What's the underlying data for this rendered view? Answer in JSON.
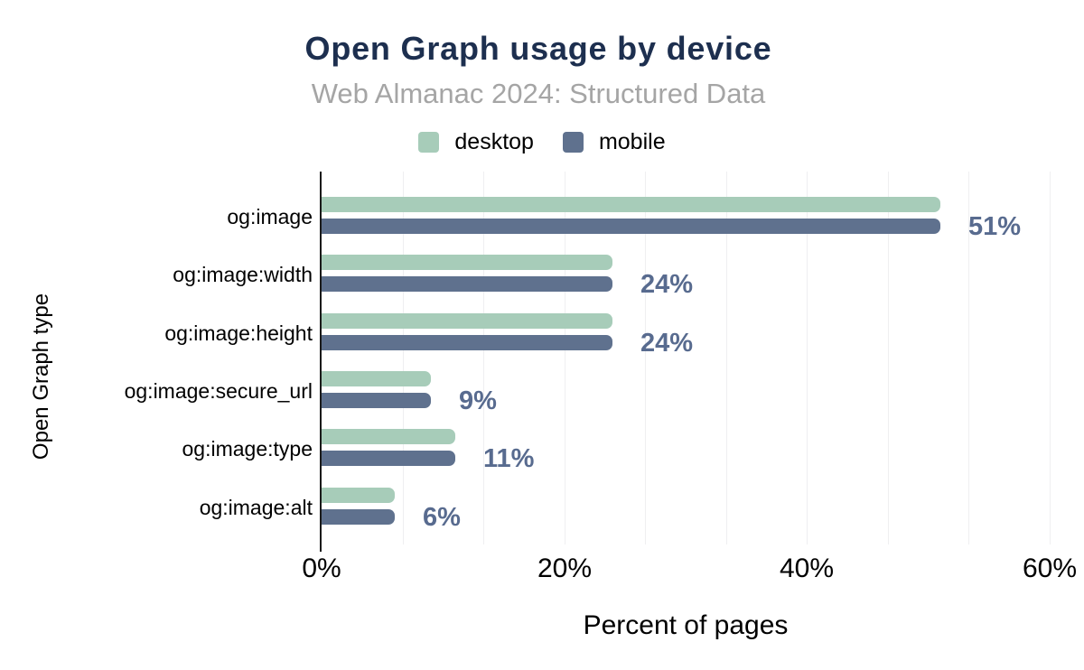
{
  "chart_data": {
    "type": "bar",
    "orientation": "horizontal",
    "title": "Open Graph usage by device",
    "subtitle": "Web Almanac 2024: Structured Data",
    "xlabel": "Percent of pages",
    "ylabel": "Open Graph type",
    "categories": [
      "og:image",
      "og:image:width",
      "og:image:height",
      "og:image:secure_url",
      "og:image:type",
      "og:image:alt"
    ],
    "series": [
      {
        "name": "desktop",
        "color": "#a7ccb9",
        "values": [
          51,
          24,
          24,
          9,
          11,
          6
        ]
      },
      {
        "name": "mobile",
        "color": "#5f718e",
        "values": [
          51,
          24,
          24,
          9,
          11,
          6
        ]
      }
    ],
    "value_labels": [
      "51%",
      "24%",
      "24%",
      "9%",
      "11%",
      "6%"
    ],
    "x_ticks": [
      {
        "value": 0,
        "label": "0%"
      },
      {
        "value": 20,
        "label": "20%"
      },
      {
        "value": 40,
        "label": "40%"
      },
      {
        "value": 60,
        "label": "60%"
      }
    ],
    "xlim": [
      0,
      60
    ],
    "grid": {
      "show": true,
      "minor_interval_pct": 6.667
    },
    "legend_position": "top"
  },
  "colors": {
    "title": "#1d2f4f",
    "subtitle": "#a5a5a5",
    "value_label": "#586b8f",
    "axis_line": "#1a1a1a",
    "gridline": "#efeff1",
    "text": "#000000",
    "background": "#ffffff"
  }
}
